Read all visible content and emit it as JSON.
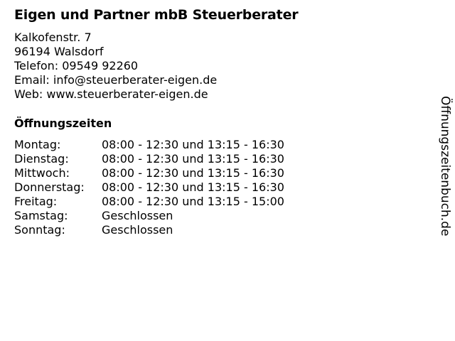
{
  "business": {
    "name": "Eigen und Partner mbB Steuerberater",
    "street": "Kalkofenstr. 7",
    "city": "96194 Walsdorf",
    "phone": "Telefon: 09549 92260",
    "email": "Email: info@steuerberater-eigen.de",
    "web": "Web: www.steuerberater-eigen.de"
  },
  "hours": {
    "title": "Öffnungszeiten",
    "rows": [
      {
        "day": "Montag:",
        "time": "08:00 - 12:30 und 13:15 - 16:30"
      },
      {
        "day": "Dienstag:",
        "time": "08:00 - 12:30 und 13:15 - 16:30"
      },
      {
        "day": "Mittwoch:",
        "time": "08:00 - 12:30 und 13:15 - 16:30"
      },
      {
        "day": "Donnerstag:",
        "time": "08:00 - 12:30 und 13:15 - 16:30"
      },
      {
        "day": "Freitag:",
        "time": "08:00 - 12:30 und 13:15 - 15:00"
      },
      {
        "day": "Samstag:",
        "time": "Geschlossen"
      },
      {
        "day": "Sonntag:",
        "time": "Geschlossen"
      }
    ]
  },
  "watermark": "Öffnungszeitenbuch.de"
}
